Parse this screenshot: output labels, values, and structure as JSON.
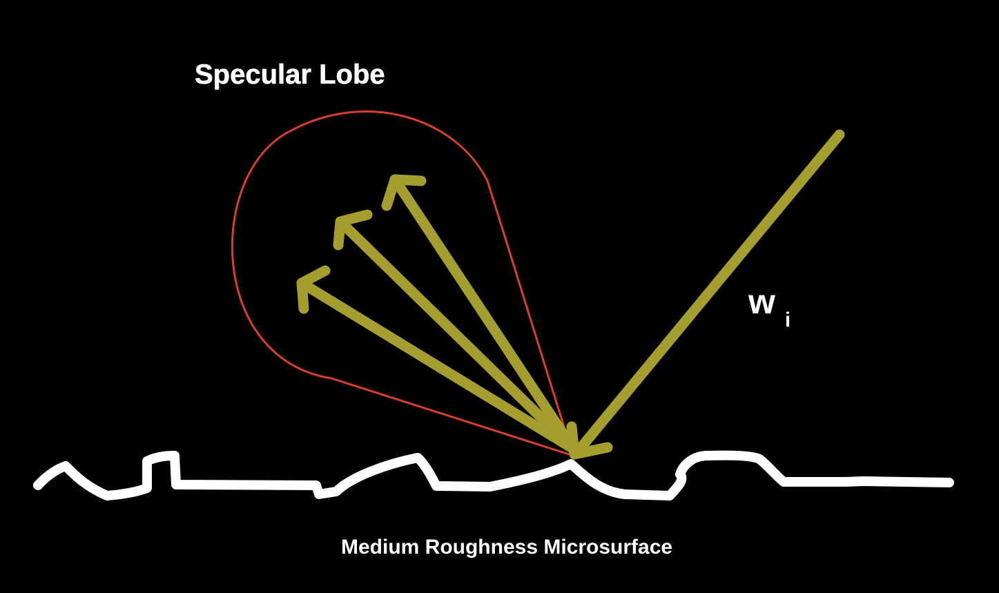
{
  "title": "Specular Lobe",
  "incident_label": {
    "main": "w",
    "subscript": "i"
  },
  "surface_label": "Medium Roughness Microsurface",
  "colors": {
    "background": "#000000",
    "arrow": "#a39e2d",
    "lobe_outline": "#d9402a",
    "surface": "#ffffff",
    "text": "#ffffff"
  }
}
